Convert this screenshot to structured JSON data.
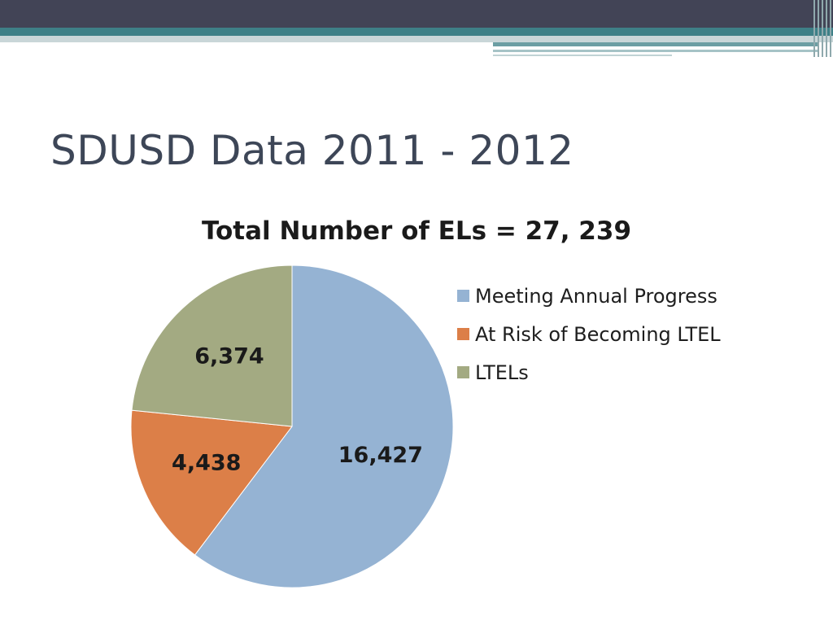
{
  "slide": {
    "title": "SDUSD Data 2011 - 2012"
  },
  "chart_data": {
    "type": "pie",
    "title": "Total Number of ELs = 27, 239",
    "categories": [
      "Meeting Annual Progress",
      "At Risk of Becoming LTEL",
      "LTELs"
    ],
    "values": [
      16427,
      4438,
      6374
    ],
    "data_labels": [
      "16,427",
      "4,438",
      "6,374"
    ],
    "colors": [
      "#95b3d3",
      "#dc7f48",
      "#a3aa82"
    ],
    "legend_position": "right"
  }
}
